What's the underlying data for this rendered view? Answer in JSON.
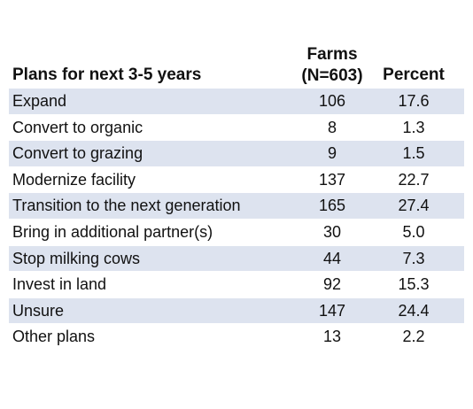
{
  "table": {
    "headers": {
      "plans": "Plans for next 3-5 years",
      "farms_line1": "Farms",
      "farms_line2": "(N=603)",
      "percent": "Percent"
    },
    "rows": [
      {
        "label": "Expand",
        "farms": "106",
        "percent": "17.6"
      },
      {
        "label": "Convert to organic",
        "farms": "8",
        "percent": "1.3"
      },
      {
        "label": "Convert to grazing",
        "farms": "9",
        "percent": "1.5"
      },
      {
        "label": "Modernize facility",
        "farms": "137",
        "percent": "22.7"
      },
      {
        "label": "Transition to the next generation",
        "farms": "165",
        "percent": "27.4"
      },
      {
        "label": "Bring in additional partner(s)",
        "farms": "30",
        "percent": "5.0"
      },
      {
        "label": "Stop milking cows",
        "farms": "44",
        "percent": "7.3"
      },
      {
        "label": "Invest in land",
        "farms": "92",
        "percent": "15.3"
      },
      {
        "label": "Unsure",
        "farms": "147",
        "percent": "24.4"
      },
      {
        "label": "Other plans",
        "farms": "13",
        "percent": "2.2"
      }
    ]
  },
  "colors": {
    "row_shade": "#dde3ef",
    "text": "#111111"
  }
}
